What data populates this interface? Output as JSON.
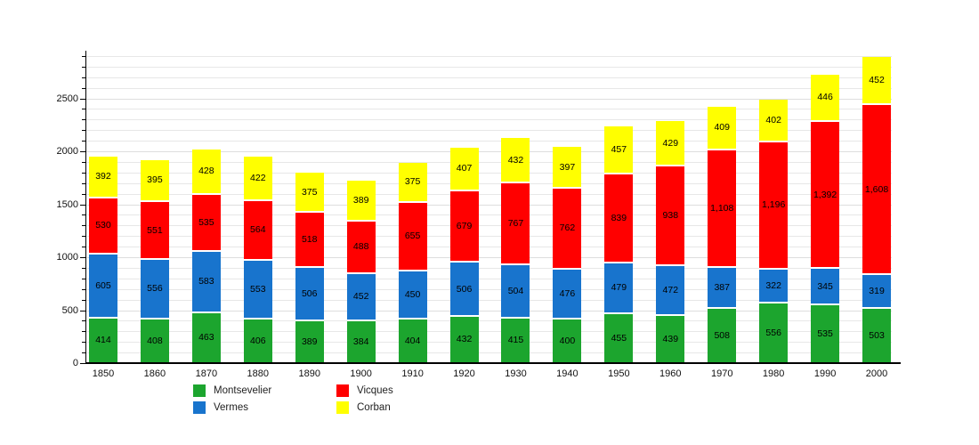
{
  "chart_data": {
    "type": "bar",
    "stacked": true,
    "title": "",
    "xlabel": "",
    "ylabel": "",
    "categories": [
      "1850",
      "1860",
      "1870",
      "1880",
      "1890",
      "1900",
      "1910",
      "1920",
      "1930",
      "1940",
      "1950",
      "1960",
      "1970",
      "1980",
      "1990",
      "2000"
    ],
    "series": [
      {
        "name": "Montsevelier",
        "color": "#1ca52e",
        "values": [
          414,
          408,
          463,
          406,
          389,
          384,
          404,
          432,
          415,
          400,
          455,
          439,
          508,
          556,
          535,
          503
        ]
      },
      {
        "name": "Vermes",
        "color": "#1874cd",
        "values": [
          605,
          556,
          583,
          553,
          506,
          452,
          450,
          506,
          504,
          476,
          479,
          472,
          387,
          322,
          345,
          319
        ]
      },
      {
        "name": "Vicques",
        "color": "#ff0000",
        "values": [
          530,
          551,
          535,
          564,
          518,
          488,
          655,
          679,
          767,
          762,
          839,
          938,
          1108,
          1196,
          1392,
          1608
        ]
      },
      {
        "name": "Corban",
        "color": "#ffff00",
        "values": [
          392,
          395,
          428,
          422,
          375,
          389,
          375,
          407,
          432,
          397,
          457,
          429,
          409,
          402,
          446,
          452
        ]
      }
    ],
    "ylim": [
      0,
      2950
    ],
    "yticks": [
      0,
      500,
      1000,
      1500,
      2000,
      2500
    ],
    "minor_grid_step": 100,
    "grid": true,
    "legend_position": "bottom",
    "segment_separator_color": "#ffffff",
    "axis_color": "#000000",
    "gridline_color": "#e7e7e7"
  }
}
